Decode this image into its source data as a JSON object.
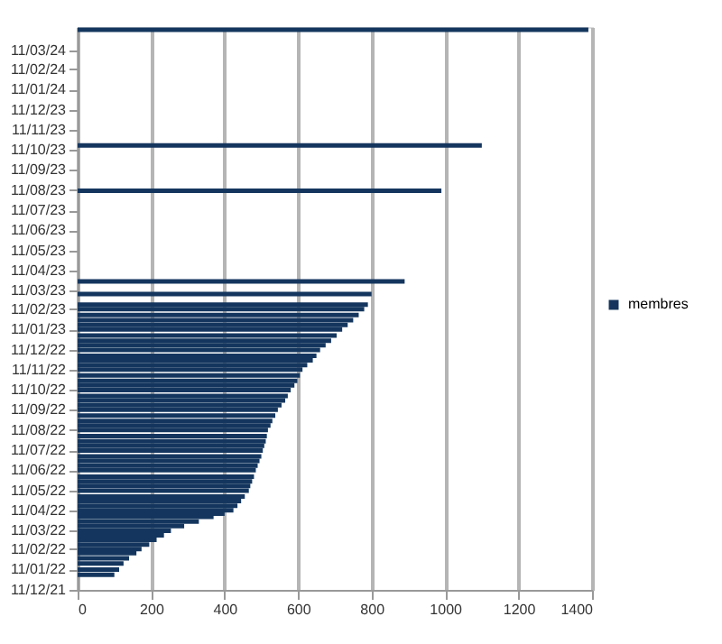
{
  "chart_data": {
    "type": "bar",
    "orientation": "horizontal",
    "legend": "right",
    "grid": "x",
    "x": [
      "2022-01-03",
      "2022-01-11",
      "2022-01-20",
      "2022-01-28",
      "2022-02-05",
      "2022-02-11",
      "2022-02-18",
      "2022-02-25",
      "2022-03-04",
      "2022-03-11",
      "2022-03-18",
      "2022-03-25",
      "2022-04-01",
      "2022-04-06",
      "2022-04-11",
      "2022-04-18",
      "2022-04-25",
      "2022-05-02",
      "2022-05-11",
      "2022-05-18",
      "2022-05-25",
      "2022-06-01",
      "2022-06-11",
      "2022-06-18",
      "2022-06-25",
      "2022-07-02",
      "2022-07-11",
      "2022-07-18",
      "2022-07-25",
      "2022-08-02",
      "2022-08-11",
      "2022-08-18",
      "2022-08-25",
      "2022-09-02",
      "2022-09-11",
      "2022-09-18",
      "2022-09-25",
      "2022-10-02",
      "2022-10-11",
      "2022-10-18",
      "2022-10-25",
      "2022-11-02",
      "2022-11-11",
      "2022-11-18",
      "2022-11-25",
      "2022-12-02",
      "2022-12-11",
      "2022-12-18",
      "2022-12-25",
      "2023-01-02",
      "2023-01-11",
      "2023-01-18",
      "2023-01-25",
      "2023-02-02",
      "2023-02-11",
      "2023-02-18",
      "2023-03-06",
      "2023-03-25",
      "2023-08-10",
      "2023-10-18",
      "2024-04-11"
    ],
    "series": [
      {
        "name": "membres",
        "color": "#14365e",
        "values": [
          100,
          113,
          125,
          140,
          160,
          174,
          195,
          215,
          235,
          254,
          290,
          330,
          370,
          400,
          424,
          435,
          445,
          455,
          466,
          470,
          475,
          480,
          485,
          490,
          495,
          500,
          504,
          508,
          512,
          515,
          518,
          525,
          530,
          538,
          545,
          555,
          565,
          572,
          580,
          590,
          598,
          605,
          612,
          625,
          640,
          650,
          660,
          675,
          690,
          705,
          720,
          735,
          750,
          765,
          780,
          790,
          800,
          890,
          990,
          1100,
          1390
        ]
      }
    ],
    "xlim": [
      0,
      1400
    ],
    "xticks": [
      0,
      200,
      400,
      600,
      800,
      1000,
      1200,
      1400
    ],
    "ylim": [
      "2021-12-11",
      "2024-04-15"
    ],
    "yticks": [
      {
        "value": "2021-12-11",
        "label": "11/12/21"
      },
      {
        "value": "2022-01-11",
        "label": "11/01/22"
      },
      {
        "value": "2022-02-11",
        "label": "11/02/22"
      },
      {
        "value": "2022-03-11",
        "label": "11/03/22"
      },
      {
        "value": "2022-04-11",
        "label": "11/04/22"
      },
      {
        "value": "2022-05-11",
        "label": "11/05/22"
      },
      {
        "value": "2022-06-11",
        "label": "11/06/22"
      },
      {
        "value": "2022-07-11",
        "label": "11/07/22"
      },
      {
        "value": "2022-08-11",
        "label": "11/08/22"
      },
      {
        "value": "2022-09-11",
        "label": "11/09/22"
      },
      {
        "value": "2022-10-11",
        "label": "11/10/22"
      },
      {
        "value": "2022-11-11",
        "label": "11/11/22"
      },
      {
        "value": "2022-12-11",
        "label": "11/12/22"
      },
      {
        "value": "2023-01-11",
        "label": "11/01/23"
      },
      {
        "value": "2023-02-11",
        "label": "11/02/23"
      },
      {
        "value": "2023-03-11",
        "label": "11/03/23"
      },
      {
        "value": "2023-04-11",
        "label": "11/04/23"
      },
      {
        "value": "2023-05-11",
        "label": "11/05/23"
      },
      {
        "value": "2023-06-11",
        "label": "11/06/23"
      },
      {
        "value": "2023-07-11",
        "label": "11/07/23"
      },
      {
        "value": "2023-08-11",
        "label": "11/08/23"
      },
      {
        "value": "2023-09-11",
        "label": "11/09/23"
      },
      {
        "value": "2023-10-11",
        "label": "11/10/23"
      },
      {
        "value": "2023-11-11",
        "label": "11/11/23"
      },
      {
        "value": "2023-12-11",
        "label": "11/12/23"
      },
      {
        "value": "2024-01-11",
        "label": "11/01/24"
      },
      {
        "value": "2024-02-11",
        "label": "11/02/24"
      },
      {
        "value": "2024-03-11",
        "label": "11/03/24"
      }
    ]
  }
}
